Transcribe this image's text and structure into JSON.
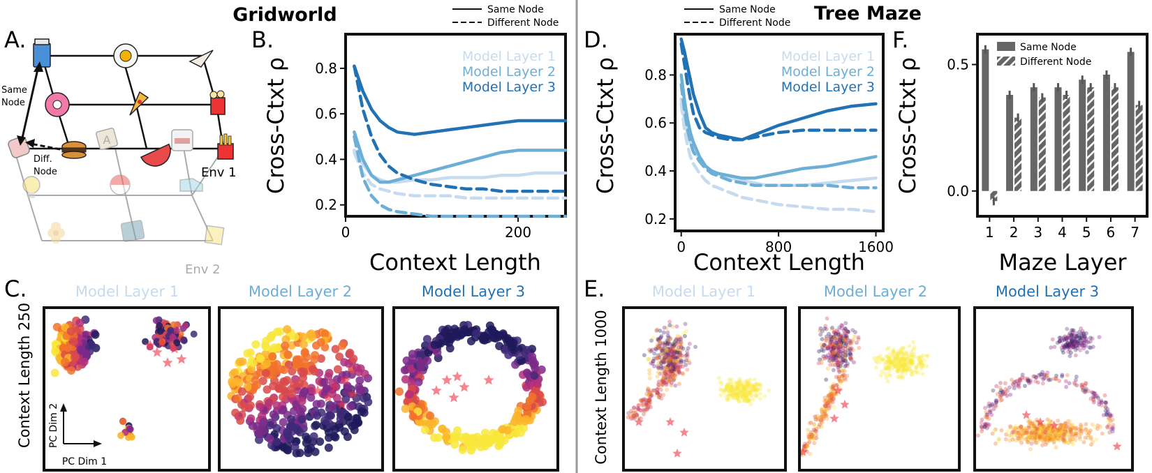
{
  "gridworld": {
    "title": "Gridworld",
    "panel_labels": {
      "a": "A.",
      "b": "B.",
      "c": "C."
    },
    "diagram": {
      "same_node_label_1": "Same",
      "same_node_label_2": "Node",
      "diff_node_label_1": "Diff.",
      "diff_node_label_2": "Node",
      "env1_label": "Env 1",
      "env2_label": "Env 2"
    },
    "pca": {
      "row_label": "Context Length 250",
      "pc_x": "PC Dim 1",
      "pc_y": "PC Dim 2",
      "panel_titles": [
        "Model Layer 1",
        "Model Layer 2",
        "Model Layer 3"
      ]
    }
  },
  "tree_maze": {
    "title": "Tree Maze",
    "panel_labels": {
      "d": "D.",
      "e": "E.",
      "f": "F."
    },
    "pca": {
      "row_label": "Context Length 1000",
      "panel_titles": [
        "Model Layer 1",
        "Model Layer 2",
        "Model Layer 3"
      ]
    }
  },
  "colors": {
    "layer1": "#c6dbef",
    "layer2": "#6baed6",
    "layer3": "#2171b5",
    "bar": "#666666",
    "star": "#ee3344"
  },
  "chart_data": [
    {
      "id": "B",
      "type": "line",
      "xlabel": "Context Length",
      "ylabel": "Cross-Ctxt ρ",
      "xlim": [
        0,
        255
      ],
      "ylim": [
        0.15,
        0.95
      ],
      "xticks": [
        0,
        200
      ],
      "xtick_labels": [
        "0",
        "200"
      ],
      "yticks": [
        0.2,
        0.4,
        0.6,
        0.8
      ],
      "ytick_labels": [
        "0.2",
        "0.4",
        "0.6",
        "0.8"
      ],
      "style_legend": [
        "Same Node",
        "Different Node"
      ],
      "x": [
        10,
        20,
        30,
        40,
        50,
        60,
        80,
        100,
        120,
        140,
        160,
        180,
        200,
        220,
        240,
        255
      ],
      "series": [
        {
          "name": "Model Layer 1",
          "color": "#c6dbef",
          "dash": false,
          "values": [
            0.44,
            0.38,
            0.33,
            0.31,
            0.3,
            0.3,
            0.31,
            0.31,
            0.32,
            0.32,
            0.32,
            0.33,
            0.33,
            0.34,
            0.34,
            0.34
          ]
        },
        {
          "name": "Model Layer 2",
          "color": "#6baed6",
          "dash": false,
          "values": [
            0.52,
            0.4,
            0.33,
            0.3,
            0.3,
            0.31,
            0.33,
            0.35,
            0.37,
            0.39,
            0.41,
            0.43,
            0.44,
            0.44,
            0.44,
            0.44
          ]
        },
        {
          "name": "Model Layer 3",
          "color": "#2171b5",
          "dash": false,
          "values": [
            0.81,
            0.7,
            0.62,
            0.57,
            0.54,
            0.52,
            0.51,
            0.52,
            0.53,
            0.54,
            0.55,
            0.56,
            0.57,
            0.57,
            0.57,
            0.57
          ]
        },
        {
          "name": "Model Layer 1",
          "color": "#c6dbef",
          "dash": true,
          "values": [
            0.43,
            0.34,
            0.29,
            0.27,
            0.26,
            0.25,
            0.24,
            0.24,
            0.24,
            0.23,
            0.23,
            0.23,
            0.23,
            0.23,
            0.23,
            0.23
          ]
        },
        {
          "name": "Model Layer 2",
          "color": "#6baed6",
          "dash": true,
          "values": [
            0.5,
            0.32,
            0.24,
            0.2,
            0.18,
            0.17,
            0.16,
            0.15,
            0.15,
            0.15,
            0.15,
            0.15,
            0.15,
            0.15,
            0.15,
            0.15
          ]
        },
        {
          "name": "Model Layer 3",
          "color": "#2171b5",
          "dash": true,
          "values": [
            0.81,
            0.62,
            0.5,
            0.42,
            0.37,
            0.34,
            0.31,
            0.29,
            0.28,
            0.27,
            0.27,
            0.26,
            0.26,
            0.26,
            0.26,
            0.26
          ]
        }
      ]
    },
    {
      "id": "D",
      "type": "line",
      "xlabel": "Context Length",
      "ylabel": "Cross-Ctxt ρ",
      "xlim": [
        -50,
        1660
      ],
      "ylim": [
        0.15,
        0.97
      ],
      "xticks": [
        0,
        800,
        1600
      ],
      "xtick_labels": [
        "0",
        "800",
        "1600"
      ],
      "yticks": [
        0.2,
        0.4,
        0.6,
        0.8
      ],
      "ytick_labels": [
        "0.2",
        "0.4",
        "0.6",
        "0.8"
      ],
      "style_legend": [
        "Same Node",
        "Different Node"
      ],
      "x": [
        0,
        25,
        50,
        75,
        100,
        150,
        200,
        250,
        300,
        400,
        500,
        600,
        700,
        800,
        1000,
        1200,
        1400,
        1600
      ],
      "series": [
        {
          "name": "Model Layer 1",
          "color": "#c6dbef",
          "dash": false,
          "values": [
            0.7,
            0.62,
            0.56,
            0.52,
            0.49,
            0.45,
            0.42,
            0.4,
            0.39,
            0.37,
            0.36,
            0.35,
            0.34,
            0.34,
            0.34,
            0.35,
            0.36,
            0.37
          ]
        },
        {
          "name": "Model Layer 2",
          "color": "#6baed6",
          "dash": false,
          "values": [
            0.8,
            0.7,
            0.62,
            0.56,
            0.52,
            0.46,
            0.42,
            0.4,
            0.39,
            0.38,
            0.37,
            0.37,
            0.38,
            0.39,
            0.41,
            0.42,
            0.44,
            0.46
          ]
        },
        {
          "name": "Model Layer 3",
          "color": "#2171b5",
          "dash": false,
          "values": [
            0.95,
            0.9,
            0.84,
            0.78,
            0.72,
            0.64,
            0.58,
            0.56,
            0.55,
            0.54,
            0.53,
            0.55,
            0.57,
            0.59,
            0.62,
            0.65,
            0.67,
            0.68
          ]
        },
        {
          "name": "Model Layer 1",
          "color": "#c6dbef",
          "dash": true,
          "values": [
            0.68,
            0.58,
            0.51,
            0.46,
            0.43,
            0.39,
            0.36,
            0.34,
            0.33,
            0.31,
            0.29,
            0.28,
            0.27,
            0.26,
            0.25,
            0.24,
            0.24,
            0.23
          ]
        },
        {
          "name": "Model Layer 2",
          "color": "#6baed6",
          "dash": true,
          "values": [
            0.76,
            0.66,
            0.58,
            0.52,
            0.48,
            0.44,
            0.41,
            0.39,
            0.38,
            0.36,
            0.35,
            0.34,
            0.34,
            0.34,
            0.34,
            0.34,
            0.33,
            0.33
          ]
        },
        {
          "name": "Model Layer 3",
          "color": "#2171b5",
          "dash": true,
          "values": [
            0.93,
            0.85,
            0.77,
            0.7,
            0.64,
            0.58,
            0.56,
            0.55,
            0.54,
            0.53,
            0.53,
            0.54,
            0.55,
            0.56,
            0.57,
            0.57,
            0.57,
            0.57
          ]
        }
      ]
    },
    {
      "id": "F",
      "type": "bar",
      "xlabel": "Maze Layer",
      "ylabel": "Cross-Ctxt ρ",
      "ylim": [
        -0.1,
        0.62
      ],
      "yticks": [
        0.0,
        0.5
      ],
      "ytick_labels": [
        "0.0",
        "0.5"
      ],
      "categories": [
        "1",
        "2",
        "3",
        "4",
        "5",
        "6",
        "7"
      ],
      "series": [
        {
          "name": "Same Node",
          "values": [
            0.56,
            0.38,
            0.41,
            0.41,
            0.44,
            0.46,
            0.55
          ]
        },
        {
          "name": "Different Node",
          "values": [
            -0.04,
            0.29,
            0.37,
            0.38,
            0.41,
            0.41,
            0.34
          ]
        }
      ]
    }
  ]
}
